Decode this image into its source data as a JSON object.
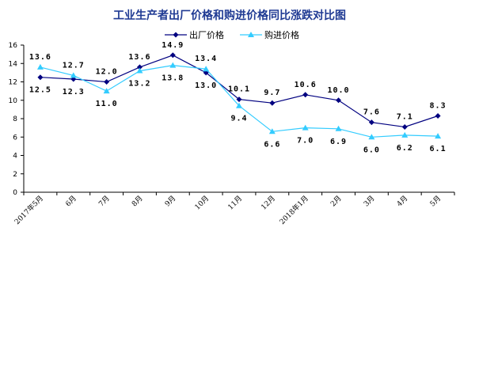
{
  "chart_data": {
    "type": "line",
    "title": "工业生产者出厂价格和购进价格同比涨跌对比图",
    "categories": [
      "2017年5月",
      "6月",
      "7月",
      "8月",
      "9月",
      "10月",
      "11月",
      "12月",
      "2018年1月",
      "2月",
      "3月",
      "4月",
      "5月"
    ],
    "ylim": [
      0,
      16
    ],
    "yticks": [
      0,
      2,
      4,
      6,
      8,
      10,
      12,
      14,
      16
    ],
    "grid": false,
    "legend_position": "top-right",
    "series": [
      {
        "name": "出厂价格",
        "color": "#000080",
        "marker": "diamond",
        "values": [
          12.5,
          12.3,
          12.0,
          13.6,
          14.9,
          13.0,
          10.1,
          9.7,
          10.6,
          10.0,
          7.6,
          7.1,
          8.3
        ],
        "labels": [
          "12.5",
          "12.3",
          "12.0",
          "13.6",
          "14.9",
          "13.0",
          "10.1",
          "9.7",
          "10.6",
          "10.0",
          "7.6",
          "7.1",
          "8.3"
        ]
      },
      {
        "name": "购进价格",
        "color": "#33ccff",
        "marker": "triangle",
        "values": [
          13.6,
          12.7,
          11.0,
          13.2,
          13.8,
          13.4,
          9.4,
          6.6,
          7.0,
          6.9,
          6.0,
          6.2,
          6.1
        ],
        "labels": [
          "13.6",
          "12.7",
          "11.0",
          "13.2",
          "13.8",
          "13.4",
          "9.4",
          "6.6",
          "7.0",
          "6.9",
          "6.0",
          "6.2",
          "6.1"
        ]
      }
    ]
  }
}
